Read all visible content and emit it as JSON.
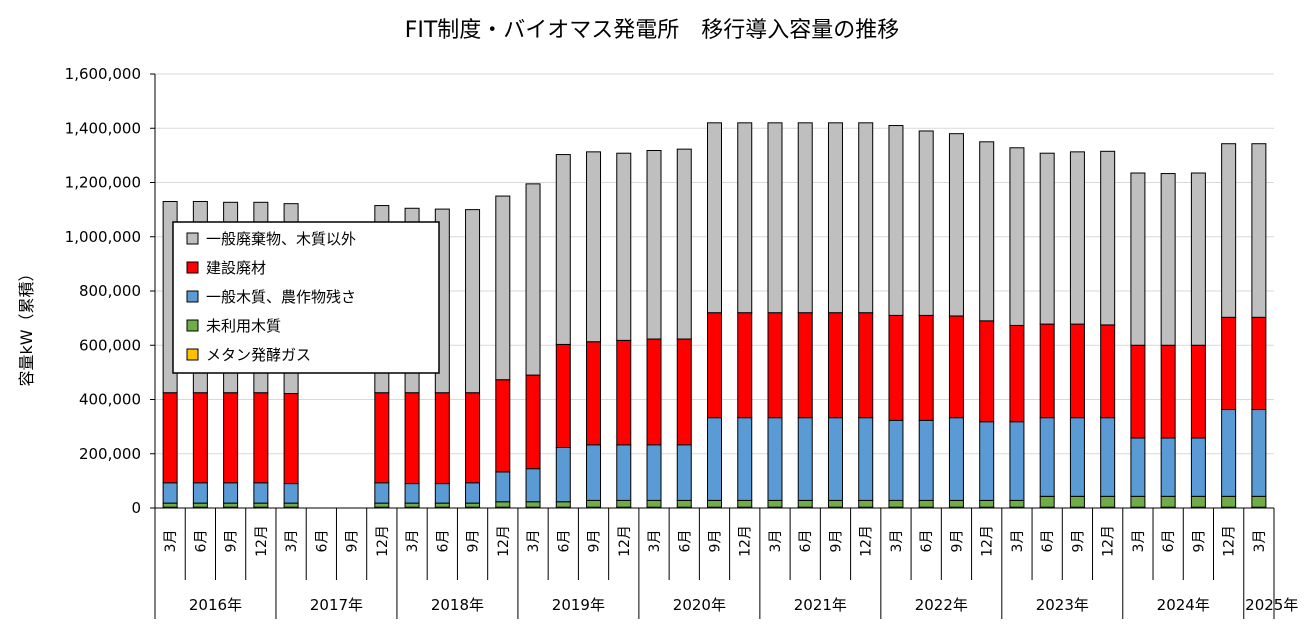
{
  "chart_data": {
    "type": "bar",
    "stacked": true,
    "title": "FIT制度・バイオマス発電所　移行導入容量の推移",
    "ylabel": "容量kW（累積）",
    "ylim": [
      0,
      1600000
    ],
    "yticks": [
      "0",
      "200,000",
      "400,000",
      "600,000",
      "800,000",
      "1,000,000",
      "1,200,000",
      "1,400,000",
      "1,600,000"
    ],
    "grid": true,
    "legend_position": "upper-left inside plot",
    "categories": [
      "3月",
      "6月",
      "9月",
      "12月",
      "3月",
      "6月",
      "9月",
      "12月",
      "3月",
      "6月",
      "9月",
      "12月",
      "3月",
      "6月",
      "9月",
      "12月",
      "3月",
      "6月",
      "9月",
      "12月",
      "3月",
      "6月",
      "9月",
      "12月",
      "3月",
      "6月",
      "9月",
      "12月",
      "3月",
      "6月",
      "9月",
      "12月",
      "3月",
      "6月",
      "9月",
      "12月",
      "3月"
    ],
    "year_groups": [
      {
        "label": "2016年",
        "count": 4
      },
      {
        "label": "2017年",
        "count": 4
      },
      {
        "label": "2018年",
        "count": 4
      },
      {
        "label": "2019年",
        "count": 4
      },
      {
        "label": "2020年",
        "count": 4
      },
      {
        "label": "2021年",
        "count": 4
      },
      {
        "label": "2022年",
        "count": 4
      },
      {
        "label": "2023年",
        "count": 4
      },
      {
        "label": "2024年",
        "count": 4
      },
      {
        "label": "2025年",
        "count": 1
      }
    ],
    "series": [
      {
        "name": "メタン発酵ガス",
        "color": "#ffc000",
        "values": [
          3000,
          3000,
          3000,
          3000,
          3000,
          0,
          0,
          3000,
          3000,
          3000,
          3000,
          3000,
          3000,
          3000,
          3000,
          3000,
          3000,
          3000,
          3000,
          3000,
          3000,
          3000,
          3000,
          3000,
          3000,
          3000,
          3000,
          3000,
          3000,
          3000,
          3000,
          3000,
          3000,
          3000,
          3000,
          3000,
          3000
        ]
      },
      {
        "name": "未利用木質",
        "color": "#70ad47",
        "values": [
          15000,
          15000,
          15000,
          15000,
          15000,
          0,
          0,
          15000,
          15000,
          15000,
          15000,
          20000,
          20000,
          20000,
          25000,
          25000,
          25000,
          25000,
          25000,
          25000,
          25000,
          25000,
          25000,
          25000,
          25000,
          25000,
          25000,
          25000,
          25000,
          40000,
          40000,
          40000,
          40000,
          40000,
          40000,
          40000,
          40000
        ]
      },
      {
        "name": "一般木質、農作物残さ",
        "color": "#5b9bd5",
        "values": [
          75000,
          75000,
          75000,
          75000,
          72000,
          0,
          0,
          75000,
          72000,
          72000,
          75000,
          110000,
          122000,
          200000,
          205000,
          205000,
          205000,
          205000,
          305000,
          305000,
          305000,
          305000,
          305000,
          305000,
          295000,
          295000,
          305000,
          290000,
          290000,
          290000,
          290000,
          290000,
          215000,
          215000,
          215000,
          320000,
          320000
        ]
      },
      {
        "name": "建設廃材",
        "color": "#ff0000",
        "values": [
          332000,
          332000,
          332000,
          332000,
          332000,
          0,
          0,
          332000,
          335000,
          335000,
          332000,
          340000,
          345000,
          380000,
          380000,
          385000,
          390000,
          390000,
          387000,
          387000,
          387000,
          387000,
          387000,
          387000,
          387000,
          387000,
          375000,
          372000,
          355000,
          345000,
          345000,
          342000,
          342000,
          342000,
          342000,
          340000,
          340000
        ]
      },
      {
        "name": "一般廃棄物、木質以外",
        "color": "#bfbfbf",
        "values": [
          705000,
          705000,
          702000,
          702000,
          700000,
          0,
          0,
          690000,
          680000,
          677000,
          675000,
          677000,
          705000,
          700000,
          700000,
          690000,
          695000,
          700000,
          700000,
          700000,
          700000,
          700000,
          700000,
          700000,
          700000,
          680000,
          672000,
          660000,
          655000,
          630000,
          635000,
          640000,
          635000,
          633000,
          635000,
          640000,
          640000
        ]
      }
    ]
  }
}
